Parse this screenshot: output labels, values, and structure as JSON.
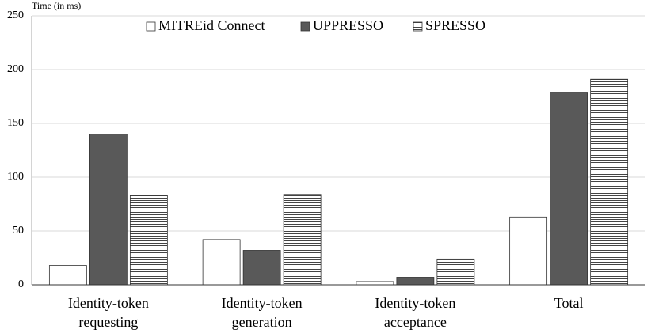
{
  "chart_data": {
    "type": "bar",
    "y_label": "Time (in ms)",
    "categories": [
      [
        "Identity-token",
        "requesting"
      ],
      [
        "Identity-token",
        "generation"
      ],
      [
        "Identity-token",
        "acceptance"
      ],
      [
        "Total"
      ]
    ],
    "series": [
      {
        "name": "MITREid Connect",
        "color": "#ffffff",
        "values": [
          18,
          42,
          3,
          63
        ]
      },
      {
        "name": "UPPRESSO",
        "color": "#595959",
        "values": [
          140,
          32,
          7,
          179
        ]
      },
      {
        "name": "SPRESSO",
        "color": "#ffffff",
        "pattern": "horizontal-stripes",
        "values": [
          83,
          84,
          24,
          191
        ]
      }
    ],
    "ylim": [
      0,
      250
    ],
    "yticks": [
      0,
      50,
      100,
      150,
      200,
      250
    ],
    "grid": true,
    "legend": "top"
  }
}
